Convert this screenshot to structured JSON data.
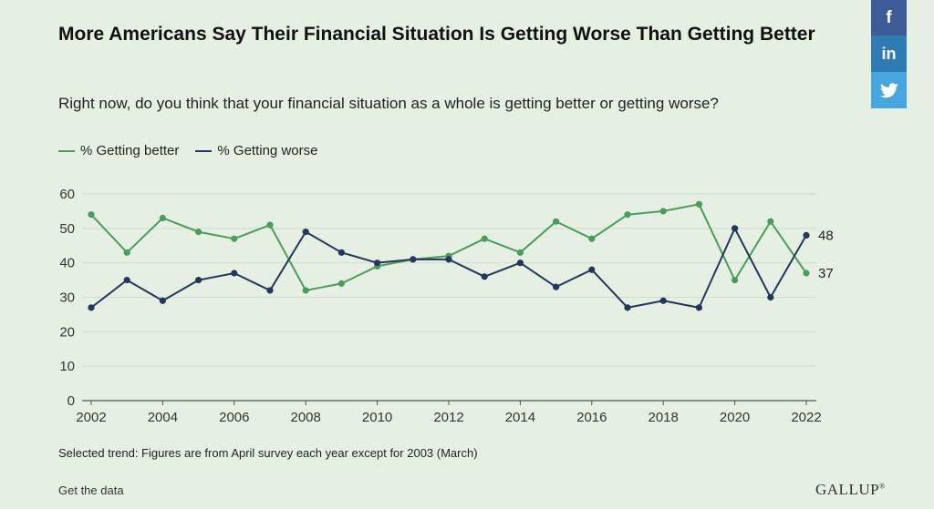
{
  "title": "More Americans Say Their Financial Situation Is Getting Worse Than Getting Better",
  "subtitle": "Right now, do you think that your financial situation as a whole is getting better or getting worse?",
  "share": {
    "facebook": "f",
    "linkedin": "in",
    "twitter_icon": "twitter-bird-icon"
  },
  "colors": {
    "better": "#4a9d5b",
    "worse": "#25365c",
    "grid": "#cfdccc",
    "axis": "#555555"
  },
  "footnote": "Selected trend: Figures are from April survey each year except for 2003 (March)",
  "get_data": "Get the data",
  "logo": "GALLUP",
  "logo_mark": "®",
  "chart_data": {
    "type": "line",
    "title": "More Americans Say Their Financial Situation Is Getting Worse Than Getting Better",
    "x": [
      2002,
      2003,
      2004,
      2005,
      2006,
      2007,
      2008,
      2009,
      2010,
      2011,
      2012,
      2013,
      2014,
      2015,
      2016,
      2017,
      2018,
      2019,
      2020,
      2021,
      2022
    ],
    "series": [
      {
        "name": "% Getting better",
        "color": "#4a9d5b",
        "values": [
          54,
          43,
          53,
          49,
          47,
          51,
          32,
          34,
          39,
          41,
          42,
          47,
          43,
          52,
          47,
          54,
          55,
          57,
          35,
          52,
          37
        ]
      },
      {
        "name": "% Getting worse",
        "color": "#25365c",
        "values": [
          27,
          35,
          29,
          35,
          37,
          32,
          49,
          43,
          40,
          41,
          41,
          36,
          40,
          33,
          38,
          27,
          29,
          27,
          50,
          30,
          48
        ]
      }
    ],
    "xticks": [
      "2002",
      "2004",
      "2006",
      "2008",
      "2010",
      "2012",
      "2014",
      "2016",
      "2018",
      "2020",
      "2022"
    ],
    "yticks": [
      "0",
      "10",
      "20",
      "30",
      "40",
      "50",
      "60"
    ],
    "ylim": [
      0,
      60
    ],
    "xlim": [
      2002,
      2022
    ],
    "end_labels": [
      "48",
      "37"
    ],
    "grid": true,
    "legend": "top-left"
  }
}
